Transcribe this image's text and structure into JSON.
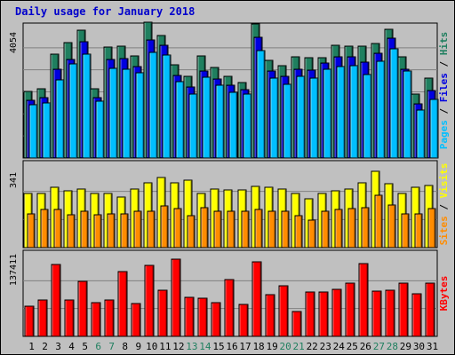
{
  "title": "Daily usage for January 2018",
  "colors": {
    "background": "#c0c0c0",
    "grid": "#808080",
    "hits": "#1f7f5f",
    "files": "#0000e0",
    "pages": "#00bfff",
    "visits": "#ffff00",
    "sites": "#ff8c00",
    "kbytes": "#ff0000",
    "weekend_tick": "#1f7f5f",
    "weekday_tick": "#000000"
  },
  "chart_data": {
    "type": "bar",
    "x": [
      "1",
      "2",
      "3",
      "4",
      "5",
      "6",
      "7",
      "8",
      "9",
      "10",
      "11",
      "12",
      "13",
      "14",
      "15",
      "16",
      "17",
      "18",
      "19",
      "20",
      "21",
      "22",
      "23",
      "24",
      "25",
      "26",
      "27",
      "28",
      "29",
      "30",
      "31"
    ],
    "weekend_days": [
      "6",
      "7",
      "13",
      "14",
      "20",
      "21",
      "27",
      "28"
    ],
    "panels": [
      {
        "name": "hits_files_pages",
        "scale_label": "4054",
        "ymax": 4054,
        "right_labels": [
          {
            "text": "Pages",
            "color_key": "pages"
          },
          {
            "text": " / ",
            "color_key": "weekday_tick"
          },
          {
            "text": "Files",
            "color_key": "files"
          },
          {
            "text": " / ",
            "color_key": "weekday_tick"
          },
          {
            "text": "Hits",
            "color_key": "hits"
          }
        ],
        "series": [
          {
            "name": "Hits",
            "color_key": "hits",
            "values": [
              2040,
              2110,
              3190,
              3530,
              3930,
              2130,
              3410,
              3440,
              3130,
              4170,
              3750,
              2860,
              2490,
              3120,
              2780,
              2510,
              2320,
              4100,
              2980,
              2840,
              3100,
              3080,
              3080,
              3450,
              3430,
              3430,
              3500,
              3940,
              3110,
              1950,
              2440
            ]
          },
          {
            "name": "Files",
            "color_key": "files",
            "values": [
              1780,
              1840,
              2730,
              3020,
              3560,
              1860,
              3030,
              3040,
              2810,
              3620,
              3450,
              2520,
              2170,
              2670,
              2410,
              2230,
              2090,
              3700,
              2670,
              2490,
              2720,
              2690,
              2920,
              3100,
              3100,
              2940,
              3200,
              3680,
              2730,
              1670,
              2070
            ]
          },
          {
            "name": "Pages",
            "color_key": "pages",
            "values": [
              1640,
              1700,
              2400,
              2880,
              3170,
              1750,
              2750,
              2720,
              2620,
              3230,
              3150,
              2350,
              1970,
              2470,
              2240,
              2000,
              1970,
              3290,
              2460,
              2250,
              2510,
              2450,
              2710,
              2790,
              2830,
              2560,
              2960,
              3350,
              2660,
              1470,
              1790
            ]
          }
        ]
      },
      {
        "name": "visits_sites",
        "scale_label": "341",
        "ymax": 341,
        "right_labels": [
          {
            "text": "Sites",
            "color_key": "sites"
          },
          {
            "text": " / ",
            "color_key": "weekday_tick"
          },
          {
            "text": "Visits",
            "color_key": "visits"
          }
        ],
        "series": [
          {
            "name": "Visits",
            "color_key": "visits",
            "values": [
              218,
              218,
              243,
              228,
              238,
              218,
              218,
              203,
              238,
              263,
              283,
              263,
              273,
              218,
              238,
              233,
              233,
              248,
              243,
              238,
              218,
              198,
              218,
              228,
              238,
              263,
              308,
              258,
              218,
              243,
              253
            ]
          },
          {
            "name": "Sites",
            "color_key": "sites",
            "values": [
              138,
              153,
              153,
              133,
              148,
              133,
              138,
              138,
              148,
              148,
              168,
              158,
              128,
              163,
              148,
              148,
              148,
              153,
              148,
              148,
              128,
              113,
              148,
              153,
              158,
              163,
              213,
              173,
              138,
              138,
              158
            ]
          }
        ]
      },
      {
        "name": "kbytes",
        "scale_label": "137411",
        "ymax": 137411,
        "right_labels": [
          {
            "text": "KBytes",
            "color_key": "kbytes"
          }
        ],
        "series": [
          {
            "name": "KBytes",
            "color_key": "kbytes",
            "values": [
              50200,
              59600,
              119000,
              60500,
              91200,
              55900,
              60500,
              107000,
              54600,
              117000,
              76300,
              127000,
              65000,
              63400,
              55900,
              93000,
              53100,
              123000,
              68900,
              83600,
              41000,
              72600,
              73500,
              78200,
              87500,
              120000,
              74400,
              76300,
              87500,
              70200,
              87500
            ]
          }
        ]
      }
    ]
  }
}
